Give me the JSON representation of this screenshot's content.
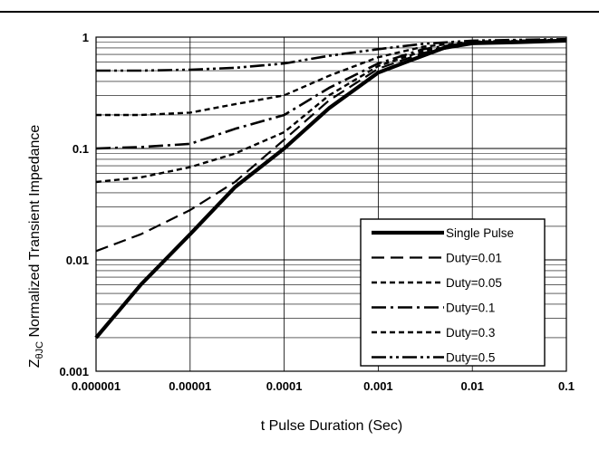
{
  "chart_data": {
    "type": "line",
    "x_scale": "log",
    "y_scale": "log",
    "xlim": [
      1e-06,
      0.1
    ],
    "ylim": [
      0.001,
      1
    ],
    "xlabel": "t Pulse Duration (Sec)",
    "ylabel_main": "Z",
    "ylabel_sub": "θJC",
    "ylabel_rest": " Normalized Transient Impedance",
    "x_tick_labels": [
      "0.000001",
      "0.00001",
      "0.0001",
      "0.001",
      "0.01",
      "0.1"
    ],
    "y_tick_labels": [
      "0.001",
      "0.01",
      "0.1",
      "1"
    ],
    "grid": true,
    "legend_position": "bottom-right",
    "series": [
      {
        "name": "Single Pulse",
        "style": "solid",
        "points": [
          [
            1e-06,
            0.002
          ],
          [
            3e-06,
            0.006
          ],
          [
            1e-05,
            0.017
          ],
          [
            3e-05,
            0.045
          ],
          [
            0.0001,
            0.1
          ],
          [
            0.0003,
            0.23
          ],
          [
            0.001,
            0.48
          ],
          [
            0.002,
            0.6
          ],
          [
            0.005,
            0.8
          ],
          [
            0.01,
            0.88
          ],
          [
            0.03,
            0.9
          ],
          [
            0.1,
            0.93
          ]
        ]
      },
      {
        "name": "Duty=0.01",
        "style": "dash-long",
        "points": [
          [
            1e-06,
            0.012
          ],
          [
            3e-06,
            0.017
          ],
          [
            1e-05,
            0.028
          ],
          [
            3e-05,
            0.05
          ],
          [
            0.0001,
            0.12
          ],
          [
            0.0003,
            0.27
          ],
          [
            0.001,
            0.52
          ],
          [
            0.003,
            0.72
          ],
          [
            0.01,
            0.88
          ],
          [
            0.03,
            0.91
          ],
          [
            0.1,
            0.93
          ]
        ]
      },
      {
        "name": "Duty=0.05",
        "style": "dash-short",
        "points": [
          [
            1e-06,
            0.05
          ],
          [
            3e-06,
            0.055
          ],
          [
            1e-05,
            0.068
          ],
          [
            3e-05,
            0.09
          ],
          [
            0.0001,
            0.14
          ],
          [
            0.0003,
            0.3
          ],
          [
            0.001,
            0.55
          ],
          [
            0.003,
            0.75
          ],
          [
            0.01,
            0.89
          ],
          [
            0.1,
            0.94
          ]
        ]
      },
      {
        "name": "Duty=0.1",
        "style": "dash-dot",
        "points": [
          [
            1e-06,
            0.1
          ],
          [
            3e-06,
            0.103
          ],
          [
            1e-05,
            0.11
          ],
          [
            3e-05,
            0.15
          ],
          [
            0.0001,
            0.2
          ],
          [
            0.0003,
            0.35
          ],
          [
            0.001,
            0.58
          ],
          [
            0.003,
            0.78
          ],
          [
            0.01,
            0.9
          ],
          [
            0.1,
            0.94
          ]
        ]
      },
      {
        "name": "Duty=0.3",
        "style": "dash-short",
        "points": [
          [
            1e-06,
            0.2
          ],
          [
            3e-06,
            0.2
          ],
          [
            1e-05,
            0.21
          ],
          [
            3e-05,
            0.25
          ],
          [
            0.0001,
            0.3
          ],
          [
            0.0003,
            0.45
          ],
          [
            0.001,
            0.66
          ],
          [
            0.003,
            0.82
          ],
          [
            0.01,
            0.91
          ],
          [
            0.1,
            0.95
          ]
        ]
      },
      {
        "name": "Duty=0.5",
        "style": "dash-dot-dot",
        "points": [
          [
            1e-06,
            0.5
          ],
          [
            3e-06,
            0.5
          ],
          [
            1e-05,
            0.51
          ],
          [
            3e-05,
            0.53
          ],
          [
            0.0001,
            0.58
          ],
          [
            0.0003,
            0.68
          ],
          [
            0.001,
            0.78
          ],
          [
            0.003,
            0.87
          ],
          [
            0.01,
            0.93
          ],
          [
            0.1,
            0.96
          ]
        ]
      }
    ]
  }
}
